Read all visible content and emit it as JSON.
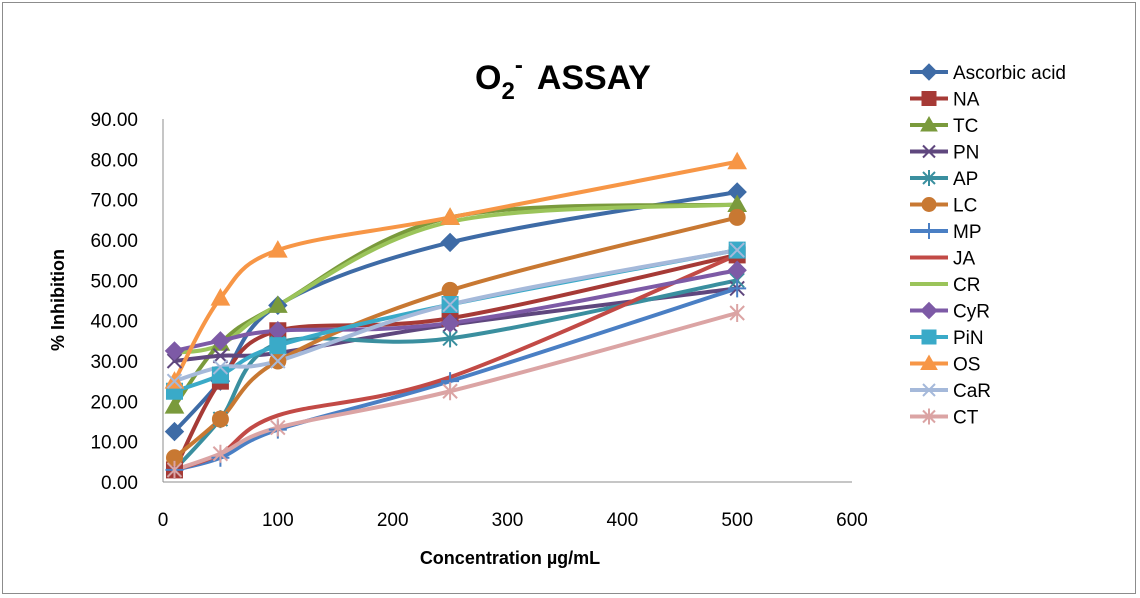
{
  "chart_data": {
    "type": "line",
    "title": {
      "main": "O",
      "sub": "2",
      "sup": "-",
      "rest": "ASSAY"
    },
    "xlabel": "Concentration µg/mL",
    "ylabel": "% Inhibition",
    "xlim": [
      0,
      600
    ],
    "ylim": [
      0,
      90
    ],
    "xticks": [
      "0",
      "100",
      "200",
      "300",
      "400",
      "500",
      "600"
    ],
    "yticks": [
      "0.00",
      "10.00",
      "20.00",
      "30.00",
      "40.00",
      "50.00",
      "60.00",
      "70.00",
      "80.00",
      "90.00"
    ],
    "grid": false,
    "legend_position": "right",
    "x": [
      10,
      50,
      100,
      250,
      500
    ],
    "series": [
      {
        "name": "Ascorbic acid",
        "color": "#3e6ba6",
        "marker": "diamond",
        "values": [
          12.5,
          25.0,
          43.8,
          59.4,
          71.9
        ]
      },
      {
        "name": "NA",
        "color": "#a63a36",
        "marker": "square",
        "values": [
          3.0,
          25.0,
          37.5,
          40.6,
          56.3
        ]
      },
      {
        "name": "TC",
        "color": "#7a9a3c",
        "marker": "triangle",
        "values": [
          18.8,
          34.4,
          43.8,
          65.6,
          68.8
        ]
      },
      {
        "name": "PN",
        "color": "#5f477e",
        "marker": "x",
        "values": [
          30.0,
          31.3,
          32.0,
          39.0,
          48.0
        ]
      },
      {
        "name": "AP",
        "color": "#3a8f9f",
        "marker": "asterisk",
        "values": [
          3.0,
          15.6,
          34.4,
          35.6,
          50.0
        ]
      },
      {
        "name": "LC",
        "color": "#c87832",
        "marker": "circle",
        "values": [
          6.0,
          15.6,
          30.0,
          47.5,
          65.6
        ]
      },
      {
        "name": "MP",
        "color": "#4a7fc4",
        "marker": "plus",
        "values": [
          3.0,
          6.0,
          13.0,
          25.0,
          48.0
        ]
      },
      {
        "name": "JA",
        "color": "#c24a46",
        "marker": "none",
        "values": [
          3.0,
          7.0,
          16.5,
          26.0,
          56.3
        ]
      },
      {
        "name": "CR",
        "color": "#9bc45a",
        "marker": "none",
        "values": [
          32.0,
          34.0,
          43.8,
          64.5,
          68.8
        ]
      },
      {
        "name": "CyR",
        "color": "#7d5aa6",
        "marker": "diamond",
        "values": [
          32.5,
          35.0,
          37.5,
          39.4,
          52.5
        ]
      },
      {
        "name": "PiN",
        "color": "#3aaac8",
        "marker": "square",
        "values": [
          22.5,
          26.5,
          33.8,
          44.0,
          57.5
        ]
      },
      {
        "name": "OS",
        "color": "#f79646",
        "marker": "triangle",
        "values": [
          25.0,
          45.6,
          57.5,
          65.6,
          79.4
        ]
      },
      {
        "name": "CaR",
        "color": "#a5b9da",
        "marker": "x",
        "values": [
          25.0,
          28.5,
          30.0,
          44.0,
          57.5
        ]
      },
      {
        "name": "CT",
        "color": "#dba4a4",
        "marker": "asterisk",
        "values": [
          3.0,
          7.0,
          13.5,
          22.5,
          41.9
        ]
      }
    ]
  }
}
